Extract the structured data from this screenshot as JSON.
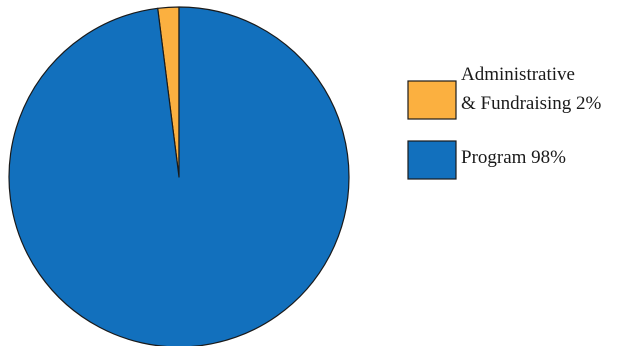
{
  "chart_data": {
    "type": "pie",
    "slices": [
      {
        "label_lines": [
          "Administrative",
          "& Fundraising 2%"
        ],
        "value": 2,
        "color": "#FBB040"
      },
      {
        "label_lines": [
          "Program 98%"
        ],
        "value": 98,
        "color": "#1270BD"
      }
    ],
    "start": "top",
    "direction": "counterclockwise",
    "legend": "right",
    "outline_color": "#1a1a1a"
  }
}
